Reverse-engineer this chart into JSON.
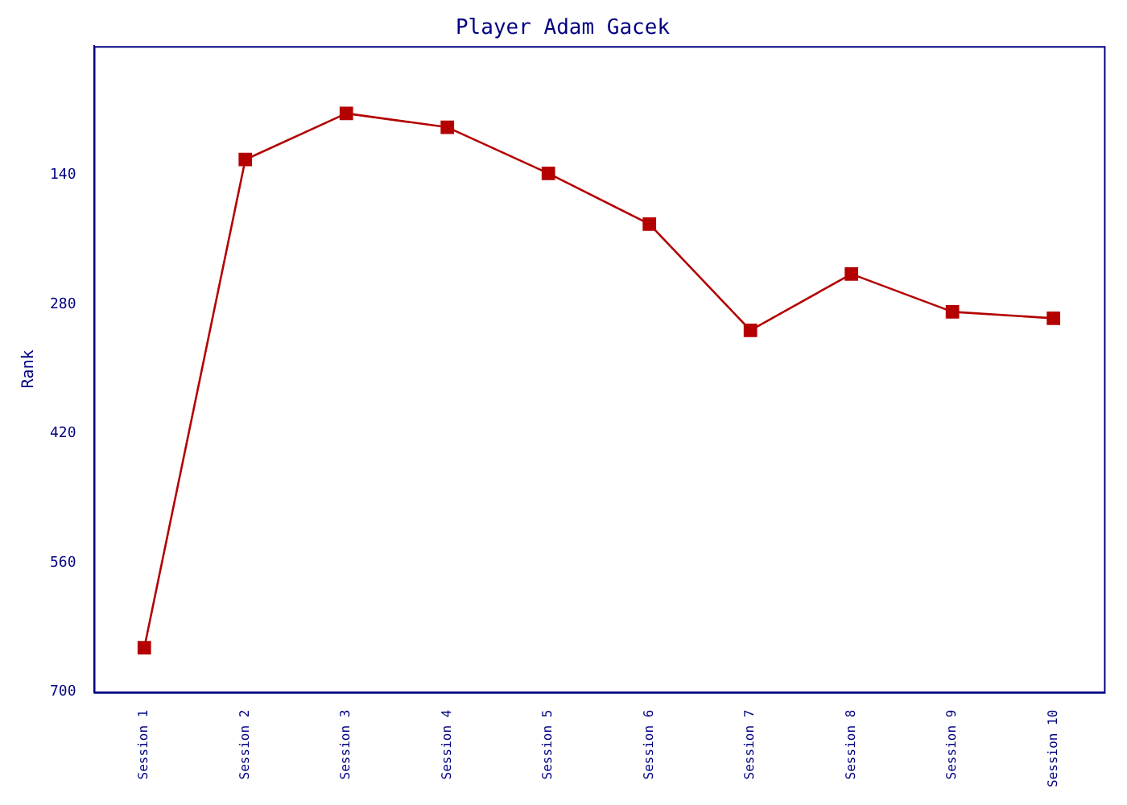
{
  "chart_data": {
    "type": "line",
    "title": "Player Adam Gacek",
    "ylabel": "Rank",
    "categories": [
      "Session 1",
      "Session 2",
      "Session 3",
      "Session 4",
      "Session 5",
      "Session 6",
      "Session 7",
      "Session 8",
      "Session 9",
      "Session 10"
    ],
    "series": [
      {
        "color": "#b40000",
        "values": [
          652,
          123,
          73,
          88,
          138,
          193,
          308,
          247,
          288,
          295
        ]
      }
    ],
    "ylim": [
      700,
      0
    ],
    "yticks": [
      140,
      280,
      420,
      560,
      700
    ],
    "grid": false,
    "legend": false,
    "marker": "square",
    "line_style": "solid"
  }
}
